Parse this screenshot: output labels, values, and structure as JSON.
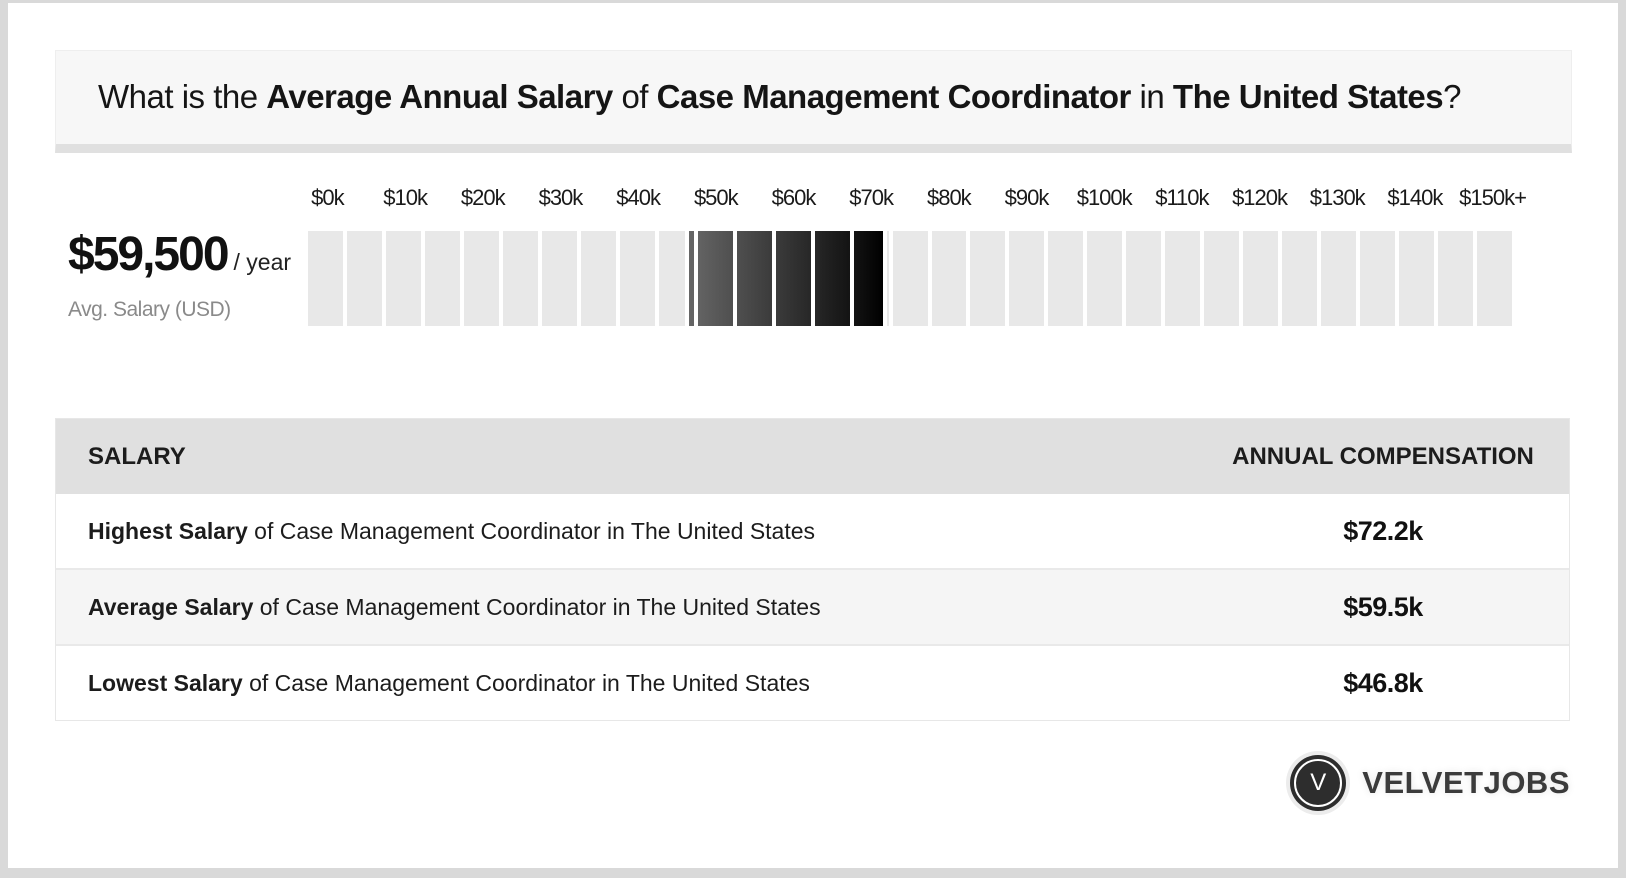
{
  "header": {
    "question_parts": [
      {
        "text": "What is the ",
        "bold": false
      },
      {
        "text": "Average Annual Salary",
        "bold": true
      },
      {
        "text": " of ",
        "bold": false
      },
      {
        "text": "Case Management Coordinator",
        "bold": true
      },
      {
        "text": " in ",
        "bold": false
      },
      {
        "text": "The United States",
        "bold": true
      },
      {
        "text": "?",
        "bold": false
      }
    ]
  },
  "summary": {
    "amount": "$59,500",
    "per": "/ year",
    "caption": "Avg. Salary (USD)"
  },
  "chart_data": {
    "type": "range-scale",
    "title": "Salary range scale for Case Management Coordinator in The United States",
    "axis_labels": [
      "$0k",
      "$10k",
      "$20k",
      "$30k",
      "$40k",
      "$50k",
      "$60k",
      "$70k",
      "$80k",
      "$90k",
      "$100k",
      "$110k",
      "$120k",
      "$130k",
      "$140k",
      "$150k+"
    ],
    "axis_tick_values_k": [
      0,
      10,
      20,
      30,
      40,
      50,
      60,
      70,
      80,
      90,
      100,
      110,
      120,
      130,
      140,
      150
    ],
    "axis_max_k": 155,
    "segment_size_k": 5,
    "lowest_k": 46.8,
    "highest_k": 72.2,
    "average_k": 59.5,
    "track_color": "#e8e8e8",
    "highlight_gradient": [
      "#666666",
      "#000000"
    ],
    "marker_glyph": "$"
  },
  "table": {
    "columns": [
      "SALARY",
      "ANNUAL COMPENSATION"
    ],
    "rows": [
      {
        "label_bold": "Highest Salary",
        "label_rest": " of Case Management Coordinator in The United States",
        "value": "$72.2k"
      },
      {
        "label_bold": "Average Salary",
        "label_rest": " of Case Management Coordinator in The United States",
        "value": "$59.5k"
      },
      {
        "label_bold": "Lowest Salary",
        "label_rest": " of Case Management Coordinator in The United States",
        "value": "$46.8k"
      }
    ]
  },
  "footer": {
    "logo_letter": "V",
    "brand": "VELVETJOBS"
  }
}
